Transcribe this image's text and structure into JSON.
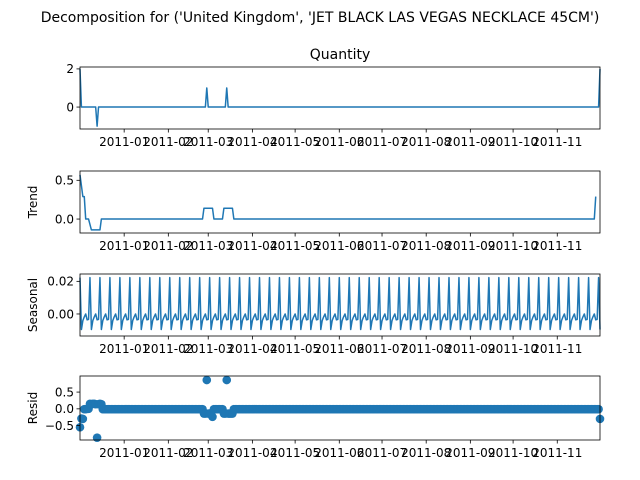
{
  "suptitle": "Decomposition for ('United Kingdom', 'JET BLACK LAS VEGAS NECKLACE 45CM')",
  "color": "#1f77b4",
  "x_ticks": [
    "2011-01",
    "2011-02",
    "2011-03",
    "2011-04",
    "2011-05",
    "2011-06",
    "2011-07",
    "2011-08",
    "2011-09",
    "2011-10",
    "2011-11"
  ],
  "chart_data": [
    {
      "type": "line",
      "title": "Quantity",
      "ylabel": "",
      "ylim": [
        -1.15,
        2.1
      ],
      "yticks": [
        0,
        2
      ],
      "ytick_labels": [
        "0",
        "2"
      ],
      "points": [
        [
          "2010-12-01",
          2
        ],
        [
          "2010-12-02",
          0
        ],
        [
          "2010-12-12",
          0
        ],
        [
          "2010-12-13",
          -1
        ],
        [
          "2010-12-14",
          0
        ],
        [
          "2011-02-27",
          0
        ],
        [
          "2011-02-28",
          1
        ],
        [
          "2011-03-01",
          0
        ],
        [
          "2011-03-13",
          0
        ],
        [
          "2011-03-14",
          1
        ],
        [
          "2011-03-15",
          0
        ],
        [
          "2011-11-30",
          0
        ],
        [
          "2011-12-01",
          2
        ]
      ]
    },
    {
      "type": "line",
      "title": "",
      "ylabel": "Trend",
      "ylim": [
        -0.18,
        0.62
      ],
      "yticks": [
        0.0,
        0.5
      ],
      "ytick_labels": [
        "0.0",
        "0.5"
      ],
      "points": [
        [
          "2010-12-01",
          0.57
        ],
        [
          "2010-12-03",
          0.29
        ],
        [
          "2010-12-04",
          0.29
        ],
        [
          "2010-12-05",
          0
        ],
        [
          "2010-12-07",
          0
        ],
        [
          "2010-12-09",
          -0.14
        ],
        [
          "2010-12-15",
          -0.14
        ],
        [
          "2010-12-16",
          0
        ],
        [
          "2011-02-25",
          0
        ],
        [
          "2011-02-26",
          0.14
        ],
        [
          "2011-03-04",
          0.14
        ],
        [
          "2011-03-05",
          0
        ],
        [
          "2011-03-11",
          0
        ],
        [
          "2011-03-12",
          0.14
        ],
        [
          "2011-03-18",
          0.14
        ],
        [
          "2011-03-19",
          0
        ],
        [
          "2011-11-27",
          0
        ],
        [
          "2011-11-28",
          0.29
        ]
      ]
    },
    {
      "type": "line",
      "title": "",
      "ylabel": "Seasonal",
      "ylim": [
        -0.0135,
        0.0245
      ],
      "yticks": [
        0.0,
        0.02
      ],
      "ytick_labels": [
        "0.00",
        "0.02"
      ],
      "start": "2010-12-01",
      "end": "2011-12-01",
      "weekly_pattern": [
        0.0223,
        -0.0095,
        -0.0041,
        -0.0018,
        0.0,
        -0.0036,
        -0.0033
      ]
    },
    {
      "type": "scatter",
      "title": "",
      "ylabel": "Resid",
      "ylim": [
        -0.93,
        0.98
      ],
      "yticks": [
        -0.5,
        0.0,
        0.5
      ],
      "ytick_labels": [
        "−0.5",
        "0.0",
        "0.5"
      ],
      "base_value": -0.01,
      "start": "2010-12-01",
      "end": "2011-12-01",
      "points": [
        [
          "2010-12-01",
          -0.55
        ],
        [
          "2010-12-02",
          -0.29
        ],
        [
          "2010-12-03",
          -0.3
        ],
        [
          "2010-12-04",
          -0.01
        ],
        [
          "2010-12-05",
          -0.01
        ],
        [
          "2010-12-06",
          0.0
        ],
        [
          "2010-12-07",
          0.0
        ],
        [
          "2010-12-08",
          0.15
        ],
        [
          "2010-12-09",
          0.14
        ],
        [
          "2010-12-10",
          0.15
        ],
        [
          "2010-12-11",
          0.15
        ],
        [
          "2010-12-12",
          0.14
        ],
        [
          "2010-12-13",
          -0.86
        ],
        [
          "2010-12-14",
          0.14
        ],
        [
          "2010-12-15",
          0.15
        ],
        [
          "2010-12-16",
          0.14
        ],
        [
          "2011-02-26",
          -0.14
        ],
        [
          "2011-02-27",
          -0.14
        ],
        [
          "2011-02-28",
          0.86
        ],
        [
          "2011-03-01",
          -0.14
        ],
        [
          "2011-03-02",
          -0.14
        ],
        [
          "2011-03-03",
          -0.13
        ],
        [
          "2011-03-04",
          -0.24
        ],
        [
          "2011-03-12",
          -0.14
        ],
        [
          "2011-03-13",
          -0.14
        ],
        [
          "2011-03-14",
          0.86
        ],
        [
          "2011-03-15",
          -0.14
        ],
        [
          "2011-03-16",
          -0.14
        ],
        [
          "2011-03-17",
          -0.14
        ],
        [
          "2011-03-18",
          -0.14
        ],
        [
          "2011-11-29",
          -0.01
        ],
        [
          "2011-11-30",
          -0.01
        ],
        [
          "2011-12-01",
          -0.3
        ]
      ]
    }
  ]
}
